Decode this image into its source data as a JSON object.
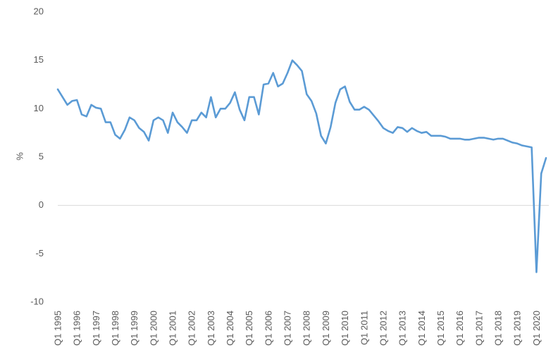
{
  "chart_data": {
    "type": "line",
    "y_label": "%",
    "categories": [
      "Q1 1995",
      null,
      null,
      null,
      "Q1 1996",
      null,
      null,
      null,
      "Q1 1997",
      null,
      null,
      null,
      "Q1 1998",
      null,
      null,
      null,
      "Q1 1999",
      null,
      null,
      null,
      "Q1 2000",
      null,
      null,
      null,
      "Q1 2001",
      null,
      null,
      null,
      "Q1 2002",
      null,
      null,
      null,
      "Q1 2003",
      null,
      null,
      null,
      "Q1 2004",
      null,
      null,
      null,
      "Q1 2005",
      null,
      null,
      null,
      "Q1 2006",
      null,
      null,
      null,
      "Q1 2007",
      null,
      null,
      null,
      "Q1 2008",
      null,
      null,
      null,
      "Q1 2009",
      null,
      null,
      null,
      "Q1 2010",
      null,
      null,
      null,
      "Q1 2011",
      null,
      null,
      null,
      "Q1 2012",
      null,
      null,
      null,
      "Q1 2013",
      null,
      null,
      null,
      "Q1 2014",
      null,
      null,
      null,
      "Q1 2015",
      null,
      null,
      null,
      "Q1 2016",
      null,
      null,
      null,
      "Q1 2017",
      null,
      null,
      null,
      "Q1 2018",
      null,
      null,
      null,
      "Q1 2019",
      null,
      null,
      null,
      "Q1 2020",
      null,
      null
    ],
    "values": [
      12.0,
      11.2,
      10.4,
      10.8,
      10.9,
      9.4,
      9.2,
      10.4,
      10.1,
      10.0,
      8.6,
      8.6,
      7.3,
      6.9,
      7.8,
      9.1,
      8.8,
      8.0,
      7.6,
      6.7,
      8.8,
      9.1,
      8.8,
      7.5,
      9.6,
      8.6,
      8.1,
      7.5,
      8.8,
      8.8,
      9.6,
      9.1,
      11.2,
      9.1,
      10.0,
      10.0,
      10.6,
      11.7,
      9.9,
      8.8,
      11.2,
      11.2,
      9.4,
      12.5,
      12.6,
      13.7,
      12.3,
      12.6,
      13.7,
      15.0,
      14.5,
      13.9,
      11.5,
      10.8,
      9.5,
      7.2,
      6.4,
      8.1,
      10.6,
      12.0,
      12.3,
      10.7,
      9.9,
      9.9,
      10.2,
      9.9,
      9.3,
      8.7,
      8.0,
      7.7,
      7.5,
      8.1,
      8.0,
      7.6,
      8.0,
      7.7,
      7.5,
      7.6,
      7.2,
      7.2,
      7.2,
      7.1,
      6.9,
      6.9,
      6.9,
      6.8,
      6.8,
      6.9,
      7.0,
      7.0,
      6.9,
      6.8,
      6.9,
      6.9,
      6.7,
      6.5,
      6.4,
      6.2,
      6.1,
      6.0,
      -6.9,
      3.3,
      4.9
    ],
    "color": "#5b9bd5",
    "ylim": [
      -10,
      20
    ],
    "yticks": [
      -10,
      -5,
      0,
      5,
      10,
      15,
      20
    ],
    "grid": false
  }
}
